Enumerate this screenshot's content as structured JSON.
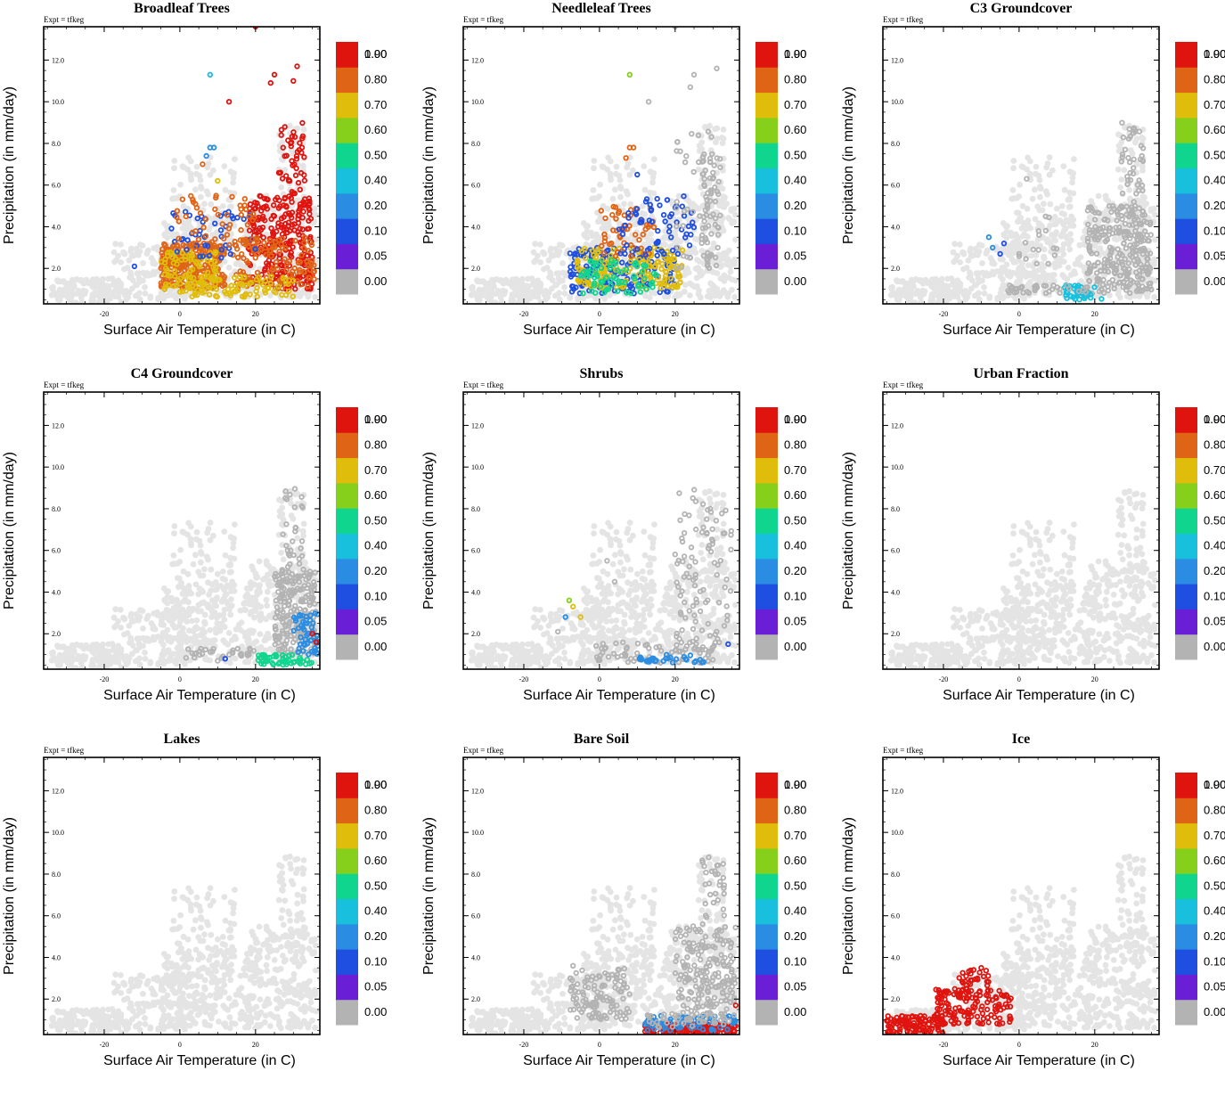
{
  "figure": {
    "expt_label": "Expt = tfkeg",
    "colorbar_labels": [
      "0.00",
      "0.05",
      "0.10",
      "0.20",
      "0.40",
      "0.50",
      "0.60",
      "0.70",
      "0.80",
      "0.90",
      "1.00"
    ],
    "colorbar_colors": [
      "#b3b3b3",
      "#6a1fd6",
      "#1f4fe0",
      "#2a8de3",
      "#18c0de",
      "#10d58e",
      "#86d01b",
      "#e0bd0a",
      "#e06416",
      "#e0140f"
    ],
    "background_color": "#e4e4e4",
    "palette_bins": [
      0,
      0.05,
      0.1,
      0.2,
      0.4,
      0.5,
      0.6,
      0.7,
      0.8,
      0.9,
      1.0
    ]
  },
  "chart_data": [
    {
      "type": "scatter",
      "title": "Broadleaf Trees",
      "xlabel": "Surface Air Temperature (in C)",
      "ylabel": "Precipitation (in mm/day)",
      "xticks": [
        "-20",
        "0",
        "20"
      ],
      "yticks": [
        "2.0",
        "4.0",
        "6.0",
        "8.0",
        "10.0",
        "12.0"
      ],
      "xlim": [
        -36,
        37
      ],
      "ylim": [
        0.3,
        13.6
      ],
      "clusters": [
        {
          "fraction": 0.8,
          "x": [
            -5,
            12
          ],
          "y": [
            1.0,
            3.2
          ],
          "count": 260
        },
        {
          "fraction": 0.75,
          "x": [
            -5,
            10
          ],
          "y": [
            1.0,
            2.8
          ],
          "count": 80
        },
        {
          "fraction": 0.95,
          "x": [
            18,
            35
          ],
          "y": [
            1.0,
            5.5
          ],
          "count": 260
        },
        {
          "fraction": 0.8,
          "x": [
            14,
            36
          ],
          "y": [
            1.0,
            3.5
          ],
          "count": 120
        },
        {
          "fraction": 0.15,
          "x": [
            -3,
            20
          ],
          "y": [
            2.5,
            4.8
          ],
          "count": 45
        },
        {
          "fraction": 0.75,
          "x": [
            0,
            30
          ],
          "y": [
            0.6,
            1.6
          ],
          "count": 90
        },
        {
          "fraction": 0.85,
          "x": [
            -2,
            20
          ],
          "y": [
            3.0,
            5.5
          ],
          "count": 50
        },
        {
          "fraction": 0.95,
          "x": [
            26,
            33
          ],
          "y": [
            5.5,
            9.0
          ],
          "count": 45
        }
      ],
      "points": [
        {
          "x": 8,
          "y": 11.3,
          "fraction": 0.45
        },
        {
          "x": 13,
          "y": 10.0,
          "fraction": 0.95
        },
        {
          "x": 24,
          "y": 10.9,
          "fraction": 0.95
        },
        {
          "x": 25,
          "y": 11.3,
          "fraction": 0.95
        },
        {
          "x": 31,
          "y": 11.7,
          "fraction": 0.95
        },
        {
          "x": 30,
          "y": 11.0,
          "fraction": 0.95
        },
        {
          "x": 20,
          "y": 13.6,
          "fraction": 0.95
        },
        {
          "x": 8,
          "y": 7.8,
          "fraction": 0.2
        },
        {
          "x": 9,
          "y": 7.8,
          "fraction": 0.3
        },
        {
          "x": 10,
          "y": 6.2,
          "fraction": 0.75
        },
        {
          "x": 6,
          "y": 7.0,
          "fraction": 0.8
        },
        {
          "x": 7,
          "y": 7.4,
          "fraction": 0.3
        },
        {
          "x": -12,
          "y": 2.1,
          "fraction": 0.15
        }
      ]
    },
    {
      "type": "scatter",
      "title": "Needleleaf Trees",
      "xlabel": "Surface Air Temperature (in C)",
      "ylabel": "Precipitation (in mm/day)",
      "xticks": [
        "-20",
        "0",
        "20"
      ],
      "yticks": [
        "2.0",
        "4.0",
        "6.0",
        "8.0",
        "10.0",
        "12.0"
      ],
      "xlim": [
        -36,
        37
      ],
      "ylim": [
        0.3,
        13.6
      ],
      "clusters": [
        {
          "fraction": 0.1,
          "x": [
            -8,
            20
          ],
          "y": [
            0.8,
            3.0
          ],
          "count": 160
        },
        {
          "fraction": 0.75,
          "x": [
            -6,
            22
          ],
          "y": [
            1.0,
            3.0
          ],
          "count": 150
        },
        {
          "fraction": 0.55,
          "x": [
            -5,
            15
          ],
          "y": [
            0.8,
            2.5
          ],
          "count": 70
        },
        {
          "fraction": 0.85,
          "x": [
            0,
            15
          ],
          "y": [
            2.5,
            5.0
          ],
          "count": 50
        },
        {
          "fraction": 0.15,
          "x": [
            5,
            25
          ],
          "y": [
            2.5,
            5.5
          ],
          "count": 60
        },
        {
          "fraction": 0.04,
          "x": [
            20,
            30
          ],
          "y": [
            2.0,
            9.0
          ],
          "count": 40
        },
        {
          "fraction": 0.0,
          "x": [
            27,
            32
          ],
          "y": [
            2.0,
            7.5
          ],
          "count": 60
        }
      ],
      "points": [
        {
          "x": 8,
          "y": 11.3,
          "fraction": 0.6
        },
        {
          "x": 13,
          "y": 10.0,
          "fraction": 0.04
        },
        {
          "x": 25,
          "y": 11.3,
          "fraction": 0.04
        },
        {
          "x": 24,
          "y": 10.7,
          "fraction": 0.04
        },
        {
          "x": 20,
          "y": 13.6,
          "fraction": 0.04
        },
        {
          "x": 31,
          "y": 11.6,
          "fraction": 0.0
        },
        {
          "x": 8,
          "y": 7.8,
          "fraction": 0.85
        },
        {
          "x": 9,
          "y": 7.8,
          "fraction": 0.85
        },
        {
          "x": 7,
          "y": 7.3,
          "fraction": 0.85
        },
        {
          "x": 10,
          "y": 6.5,
          "fraction": 0.15
        }
      ]
    },
    {
      "type": "scatter",
      "title": "C3 Groundcover",
      "xlabel": "Surface Air Temperature (in C)",
      "ylabel": "Precipitation (in mm/day)",
      "xticks": [
        "-20",
        "0",
        "20"
      ],
      "yticks": [
        "2.0",
        "4.0",
        "6.0",
        "8.0",
        "10.0",
        "12.0"
      ],
      "xlim": [
        -36,
        37
      ],
      "ylim": [
        0.3,
        13.6
      ],
      "clusters": [
        {
          "fraction": 0.0,
          "x": [
            27,
            33
          ],
          "y": [
            2.0,
            9.0
          ],
          "count": 60
        },
        {
          "fraction": 0.04,
          "x": [
            18,
            35
          ],
          "y": [
            0.8,
            5.0
          ],
          "count": 260
        },
        {
          "fraction": 0.4,
          "x": [
            12,
            22
          ],
          "y": [
            0.5,
            1.2
          ],
          "count": 35
        },
        {
          "fraction": 0.04,
          "x": [
            -3,
            18
          ],
          "y": [
            0.8,
            1.2
          ],
          "count": 35
        },
        {
          "fraction": 0.04,
          "x": [
            -2,
            10
          ],
          "y": [
            1.5,
            4.5
          ],
          "count": 14
        }
      ],
      "points": [
        {
          "x": -8,
          "y": 3.5,
          "fraction": 0.2
        },
        {
          "x": -7,
          "y": 3.0,
          "fraction": 0.2
        },
        {
          "x": -5,
          "y": 2.7,
          "fraction": 0.1
        },
        {
          "x": -4,
          "y": 3.2,
          "fraction": 0.1
        },
        {
          "x": 2,
          "y": 6.3,
          "fraction": 0.04
        },
        {
          "x": 7,
          "y": 4.5,
          "fraction": 0.04
        },
        {
          "x": 0,
          "y": 2.7,
          "fraction": 0.04
        }
      ]
    },
    {
      "type": "scatter",
      "title": "C4 Groundcover",
      "xlabel": "Surface Air Temperature (in C)",
      "ylabel": "Precipitation (in mm/day)",
      "xticks": [
        "-20",
        "0",
        "20"
      ],
      "yticks": [
        "2.0",
        "4.0",
        "6.0",
        "8.0",
        "10.0",
        "12.0"
      ],
      "xlim": [
        -36,
        37
      ],
      "ylim": [
        0.3,
        13.6
      ],
      "clusters": [
        {
          "fraction": 0.0,
          "x": [
            27,
            33
          ],
          "y": [
            2.0,
            9.0
          ],
          "count": 50
        },
        {
          "fraction": 0.0,
          "x": [
            0,
            20
          ],
          "y": [
            0.8,
            1.3
          ],
          "count": 30
        },
        {
          "fraction": 0.04,
          "x": [
            25,
            36
          ],
          "y": [
            1.0,
            5.0
          ],
          "count": 200
        },
        {
          "fraction": 0.5,
          "x": [
            20,
            35
          ],
          "y": [
            0.5,
            1.0
          ],
          "count": 50
        },
        {
          "fraction": 0.2,
          "x": [
            30,
            37
          ],
          "y": [
            1.0,
            3.0
          ],
          "count": 50
        }
      ],
      "points": [
        {
          "x": 10,
          "y": 0.7,
          "fraction": 0.04
        },
        {
          "x": 12,
          "y": 0.8,
          "fraction": 0.1
        },
        {
          "x": 36,
          "y": 1.6,
          "fraction": 0.95
        },
        {
          "x": 35,
          "y": 2.0,
          "fraction": 0.9
        }
      ]
    },
    {
      "type": "scatter",
      "title": "Shrubs",
      "xlabel": "Surface Air Temperature (in C)",
      "ylabel": "Precipitation (in mm/day)",
      "xticks": [
        "-20",
        "0",
        "20"
      ],
      "yticks": [
        "2.0",
        "4.0",
        "6.0",
        "8.0",
        "10.0",
        "12.0"
      ],
      "xlim": [
        -36,
        37
      ],
      "ylim": [
        0.3,
        13.6
      ],
      "clusters": [
        {
          "fraction": 0.0,
          "x": [
            20,
            35
          ],
          "y": [
            1.0,
            9.0
          ],
          "count": 100
        },
        {
          "fraction": 0.04,
          "x": [
            -1,
            32
          ],
          "y": [
            0.6,
            1.6
          ],
          "count": 80
        },
        {
          "fraction": 0.3,
          "x": [
            10,
            28
          ],
          "y": [
            0.6,
            1.0
          ],
          "count": 30
        }
      ],
      "points": [
        {
          "x": -8,
          "y": 3.6,
          "fraction": 0.6
        },
        {
          "x": -7,
          "y": 3.3,
          "fraction": 0.75
        },
        {
          "x": -9,
          "y": 2.8,
          "fraction": 0.3
        },
        {
          "x": -5,
          "y": 2.8,
          "fraction": 0.75
        },
        {
          "x": -11,
          "y": 2.1,
          "fraction": 0.04
        },
        {
          "x": 2,
          "y": 5.5,
          "fraction": 0.04
        },
        {
          "x": 4,
          "y": 4.5,
          "fraction": 0.04
        },
        {
          "x": 34,
          "y": 1.5,
          "fraction": 0.1
        }
      ]
    },
    {
      "type": "scatter",
      "title": "Urban Fraction",
      "xlabel": "Surface Air Temperature (in C)",
      "ylabel": "Precipitation (in mm/day)",
      "xticks": [
        "-20",
        "0",
        "20"
      ],
      "yticks": [
        "2.0",
        "4.0",
        "6.0",
        "8.0",
        "10.0",
        "12.0"
      ],
      "xlim": [
        -36,
        37
      ],
      "ylim": [
        0.3,
        13.6
      ],
      "clusters": [],
      "points": []
    },
    {
      "type": "scatter",
      "title": "Lakes",
      "xlabel": "Surface Air Temperature (in C)",
      "ylabel": "Precipitation (in mm/day)",
      "xticks": [
        "-20",
        "0",
        "20"
      ],
      "yticks": [
        "2.0",
        "4.0",
        "6.0",
        "8.0",
        "10.0",
        "12.0"
      ],
      "xlim": [
        -36,
        37
      ],
      "ylim": [
        0.3,
        13.6
      ],
      "clusters": [],
      "points": []
    },
    {
      "type": "scatter",
      "title": "Bare Soil",
      "xlabel": "Surface Air Temperature (in C)",
      "ylabel": "Precipitation (in mm/day)",
      "xticks": [
        "-20",
        "0",
        "20"
      ],
      "yticks": [
        "2.0",
        "4.0",
        "6.0",
        "8.0",
        "10.0",
        "12.0"
      ],
      "xlim": [
        -36,
        37
      ],
      "ylim": [
        0.3,
        13.6
      ],
      "clusters": [
        {
          "fraction": 0.0,
          "x": [
            -8,
            8
          ],
          "y": [
            1.0,
            3.5
          ],
          "count": 120
        },
        {
          "fraction": 0.0,
          "x": [
            20,
            36
          ],
          "y": [
            1.0,
            5.5
          ],
          "count": 200
        },
        {
          "fraction": 0.0,
          "x": [
            27,
            33
          ],
          "y": [
            5.5,
            9.0
          ],
          "count": 30
        },
        {
          "fraction": 0.95,
          "x": [
            12,
            36
          ],
          "y": [
            0.3,
            0.8
          ],
          "count": 150
        },
        {
          "fraction": 0.3,
          "x": [
            12,
            36
          ],
          "y": [
            0.5,
            1.2
          ],
          "count": 70
        },
        {
          "fraction": 0.04,
          "x": [
            12,
            36
          ],
          "y": [
            0.6,
            1.3
          ],
          "count": 40
        }
      ],
      "points": [
        {
          "x": -7,
          "y": 3.6,
          "fraction": 0.04
        },
        {
          "x": 36,
          "y": 1.7,
          "fraction": 0.95
        }
      ]
    },
    {
      "type": "scatter",
      "title": "Ice",
      "xlabel": "Surface Air Temperature (in C)",
      "ylabel": "Precipitation (in mm/day)",
      "xticks": [
        "-20",
        "0",
        "20"
      ],
      "yticks": [
        "2.0",
        "4.0",
        "6.0",
        "8.0",
        "10.0",
        "12.0"
      ],
      "xlim": [
        -36,
        37
      ],
      "ylim": [
        0.3,
        13.6
      ],
      "clusters": [
        {
          "fraction": 0.95,
          "x": [
            -35,
            -20
          ],
          "y": [
            0.3,
            1.2
          ],
          "count": 120
        },
        {
          "fraction": 0.95,
          "x": [
            -22,
            -2
          ],
          "y": [
            0.8,
            2.5
          ],
          "count": 130
        },
        {
          "fraction": 0.95,
          "x": [
            -16,
            -8
          ],
          "y": [
            2.0,
            3.4
          ],
          "count": 40
        }
      ],
      "points": [
        {
          "x": -10,
          "y": 3.5,
          "fraction": 0.95
        },
        {
          "x": -12,
          "y": 3.4,
          "fraction": 0.95
        },
        {
          "x": -14,
          "y": 3.1,
          "fraction": 0.95
        }
      ]
    }
  ]
}
